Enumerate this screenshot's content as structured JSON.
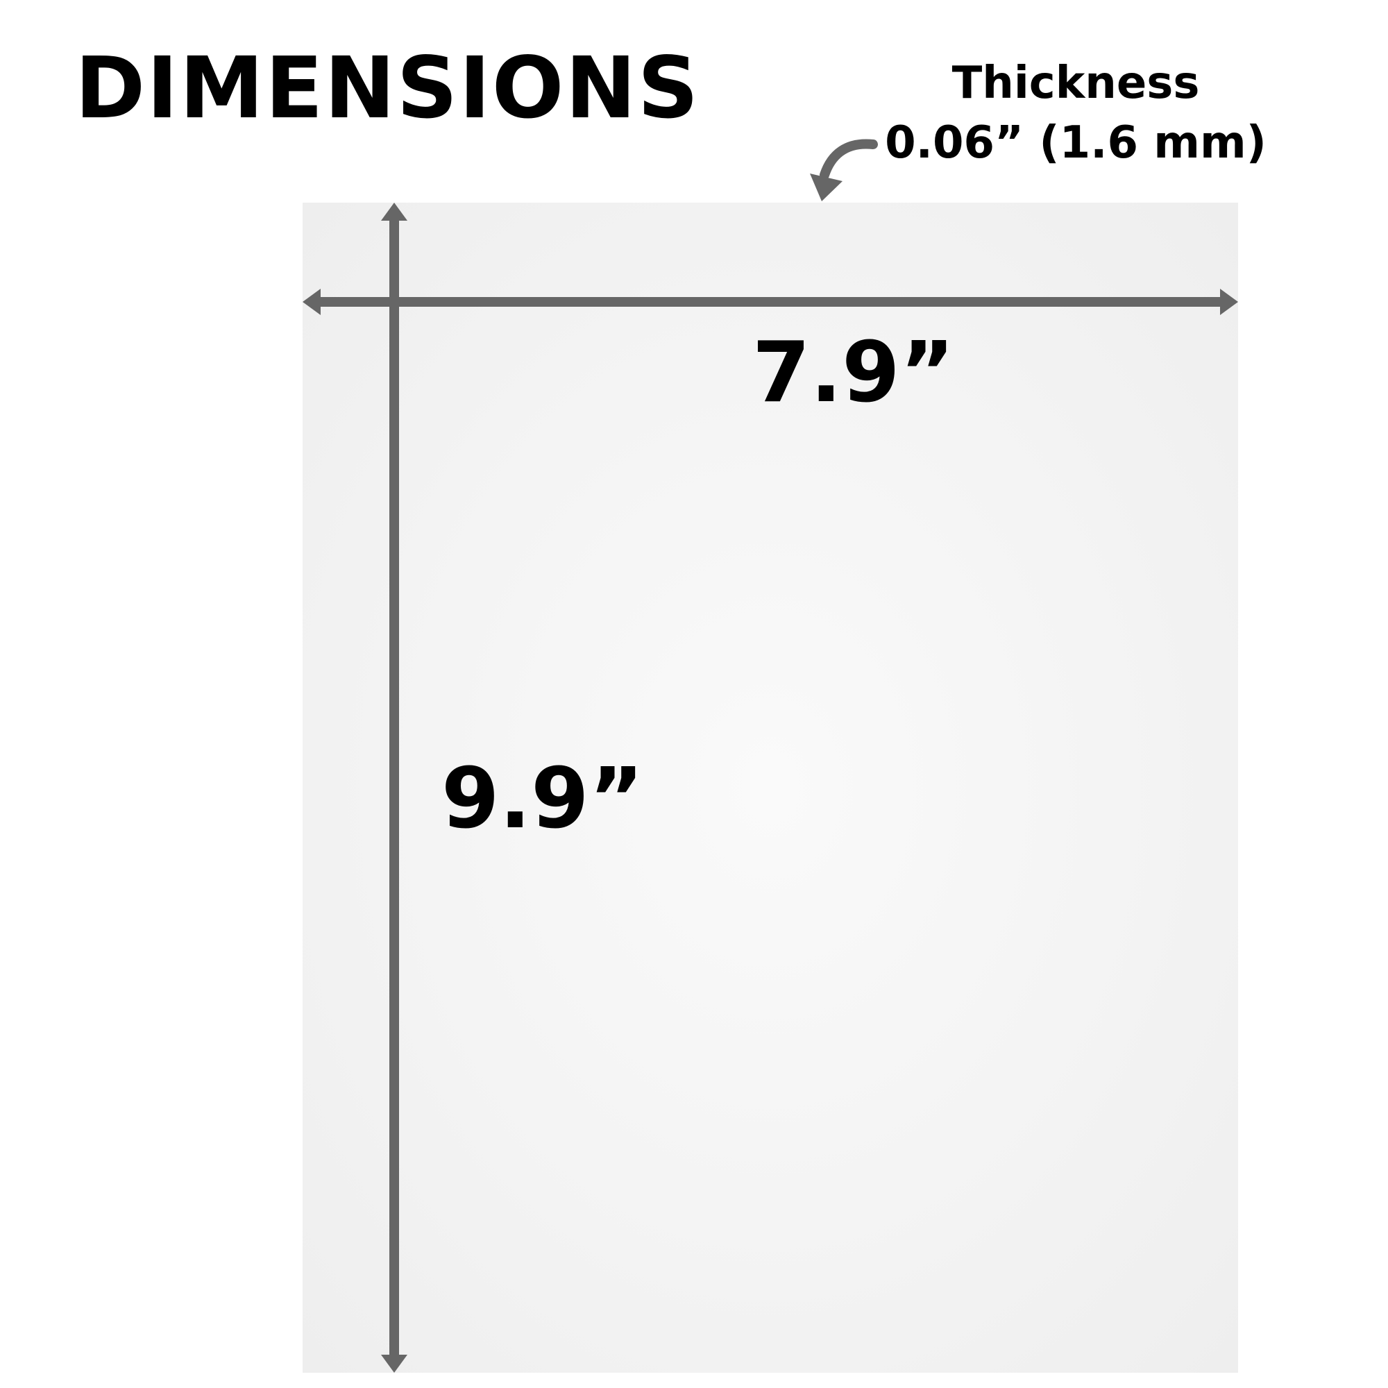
{
  "title": "DIMENSIONS",
  "thickness": {
    "label": "Thickness",
    "value": "0.06” (1.6 mm)"
  },
  "dimensions": {
    "width_label": "7.9”",
    "height_label": "9.9”"
  },
  "colors": {
    "arrow": "#666666",
    "sheet": "#f3f3f3",
    "text": "#000000"
  }
}
